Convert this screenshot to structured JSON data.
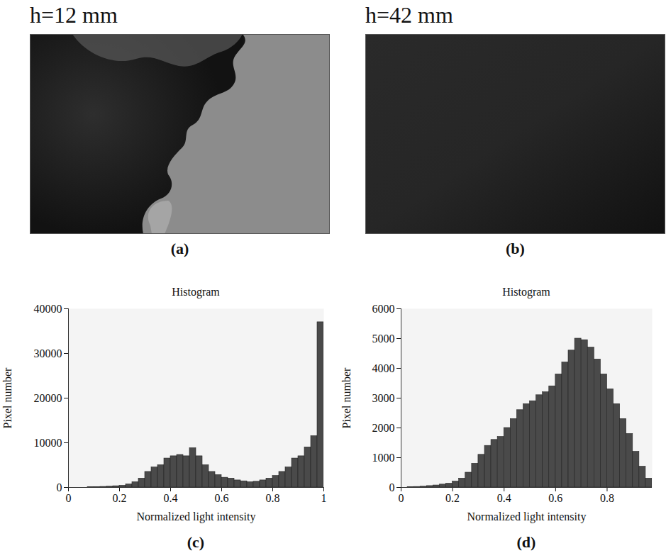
{
  "chart_data": [
    {
      "type": "image",
      "title": "h=12 mm",
      "panel": "(a)"
    },
    {
      "type": "image",
      "title": "h=42 mm",
      "panel": "(b)"
    },
    {
      "type": "histogram",
      "panel": "(c)",
      "title": "Histogram",
      "xlabel": "Normalized light intensity",
      "ylabel": "Pixel number",
      "color": "#4a4a4a",
      "bins": [
        0,
        0.025,
        0.05,
        0.075,
        0.1,
        0.125,
        0.15,
        0.175,
        0.2,
        0.225,
        0.25,
        0.275,
        0.3,
        0.325,
        0.35,
        0.375,
        0.4,
        0.425,
        0.45,
        0.475,
        0.5,
        0.525,
        0.55,
        0.575,
        0.6,
        0.625,
        0.65,
        0.675,
        0.7,
        0.725,
        0.75,
        0.775,
        0.8,
        0.825,
        0.85,
        0.875,
        0.9,
        0.925,
        0.95,
        0.975,
        1
      ],
      "counts": [
        0,
        0,
        0,
        50,
        100,
        150,
        200,
        300,
        400,
        700,
        1200,
        2000,
        3500,
        4500,
        5000,
        6500,
        7000,
        7300,
        7000,
        8800,
        7000,
        5000,
        3500,
        2800,
        2200,
        2000,
        1600,
        1400,
        1200,
        1300,
        1600,
        2000,
        2600,
        3500,
        4500,
        6500,
        7000,
        9000,
        11500,
        37000
      ],
      "xlim": [
        0,
        1
      ],
      "xticks": [
        0,
        0.2,
        0.4,
        0.6,
        0.8,
        1
      ],
      "ylim": [
        0,
        40000
      ],
      "yticks": [
        0,
        10000,
        20000,
        30000,
        40000
      ]
    },
    {
      "type": "histogram",
      "panel": "(d)",
      "title": "Histogram",
      "xlabel": "Normalized light intensity",
      "ylabel": "Pixel number",
      "color": "#4a4a4a",
      "bins": [
        0,
        0.025,
        0.05,
        0.075,
        0.1,
        0.125,
        0.15,
        0.175,
        0.2,
        0.225,
        0.25,
        0.275,
        0.3,
        0.325,
        0.35,
        0.375,
        0.4,
        0.425,
        0.45,
        0.475,
        0.5,
        0.525,
        0.55,
        0.575,
        0.6,
        0.625,
        0.65,
        0.675,
        0.7,
        0.725,
        0.75,
        0.775,
        0.8,
        0.825,
        0.85,
        0.875,
        0.9,
        0.925,
        0.95,
        0.975
      ],
      "counts": [
        0,
        10,
        20,
        30,
        50,
        70,
        100,
        130,
        200,
        300,
        500,
        800,
        1100,
        1400,
        1600,
        1700,
        2000,
        2300,
        2600,
        2800,
        2900,
        3100,
        3200,
        3400,
        3800,
        4200,
        4600,
        5000,
        4950,
        4700,
        4300,
        3800,
        3300,
        2800,
        2300,
        1800,
        1200,
        700,
        300
      ],
      "xlim": [
        0,
        0.975
      ],
      "xticks": [
        0,
        0.2,
        0.4,
        0.6,
        0.8
      ],
      "ylim": [
        0,
        6000
      ],
      "yticks": [
        0,
        1000,
        2000,
        3000,
        4000,
        5000,
        6000
      ]
    }
  ]
}
